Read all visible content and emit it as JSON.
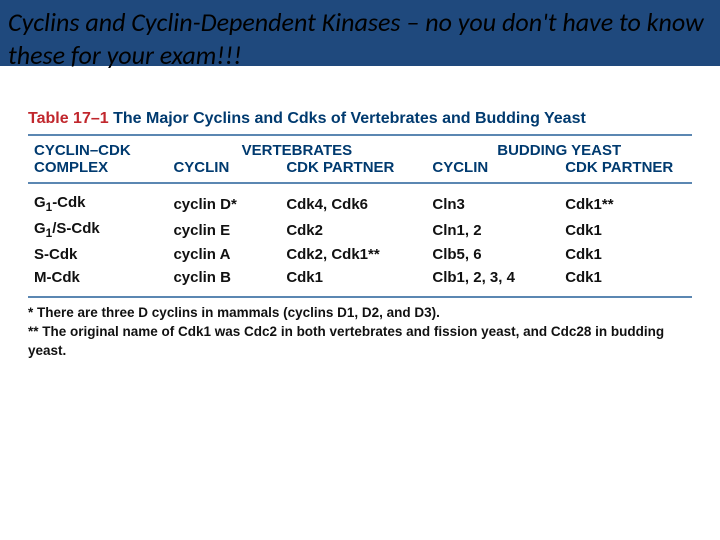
{
  "slide": {
    "title": "Cyclins and Cyclin-Dependent Kinases – no you don't have to know these for your exam!!!"
  },
  "colors": {
    "header_bar": "#1f497d",
    "table_rule": "#5b87b2",
    "table_number": "#c1272d",
    "heading_text": "#003a6f",
    "body_text": "#111111",
    "background": "#ffffff"
  },
  "table": {
    "number_label": "Table 17–1",
    "title": "The Major Cyclins and Cdks of Vertebrates and Budding Yeast",
    "group_headers": {
      "col1_line1": "CYCLIN–CDK",
      "col1_line2": "COMPLEX",
      "vertebrates": "VERTEBRATES",
      "budding_yeast": "BUDDING YEAST"
    },
    "sub_headers": {
      "cyclin": "CYCLIN",
      "cdk_partner": "CDK PARTNER"
    },
    "rows": [
      {
        "complex": "G1-Cdk",
        "v_cyclin": "cyclin D*",
        "v_cdk": "Cdk4, Cdk6",
        "y_cyclin": "Cln3",
        "y_cdk": "Cdk1**"
      },
      {
        "complex": "G1/S-Cdk",
        "v_cyclin": "cyclin E",
        "v_cdk": "Cdk2",
        "y_cyclin": "Cln1, 2",
        "y_cdk": "Cdk1"
      },
      {
        "complex": "S-Cdk",
        "v_cyclin": "cyclin A",
        "v_cdk": "Cdk2, Cdk1**",
        "y_cyclin": "Clb5, 6",
        "y_cdk": "Cdk1"
      },
      {
        "complex": "M-Cdk",
        "v_cyclin": "cyclin B",
        "v_cdk": "Cdk1",
        "y_cyclin": "Clb1, 2, 3, 4",
        "y_cdk": "Cdk1"
      }
    ],
    "footnotes": [
      "* There are three D cyclins in mammals (cyclins D1, D2, and D3).",
      "** The original name of Cdk1 was Cdc2 in both vertebrates and fission yeast, and Cdc28 in budding yeast."
    ]
  }
}
